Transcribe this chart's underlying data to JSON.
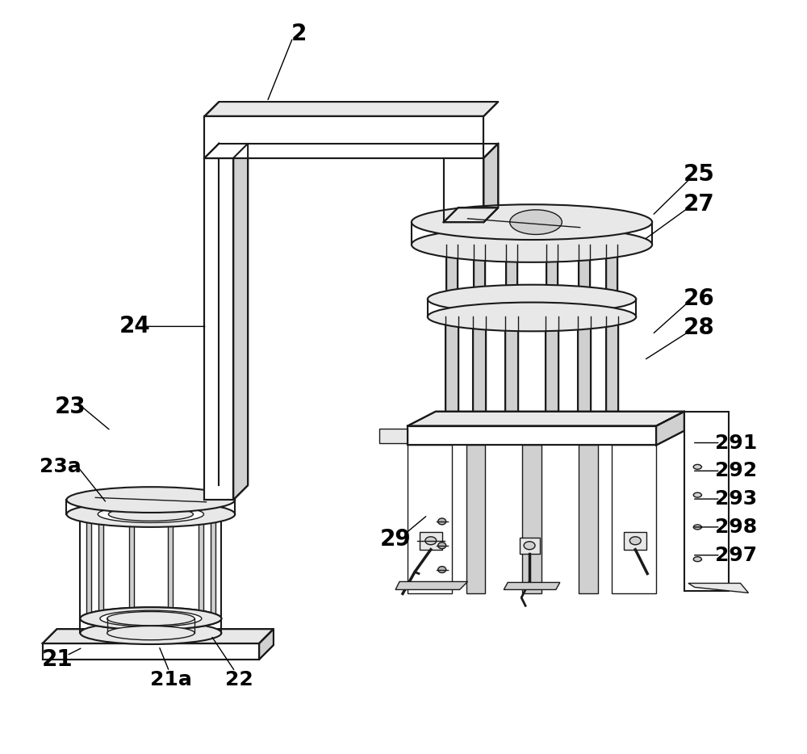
{
  "background_color": "#ffffff",
  "line_color": "#1a1a1a",
  "figsize": [
    10.0,
    9.34
  ],
  "dpi": 100,
  "depth": 18
}
